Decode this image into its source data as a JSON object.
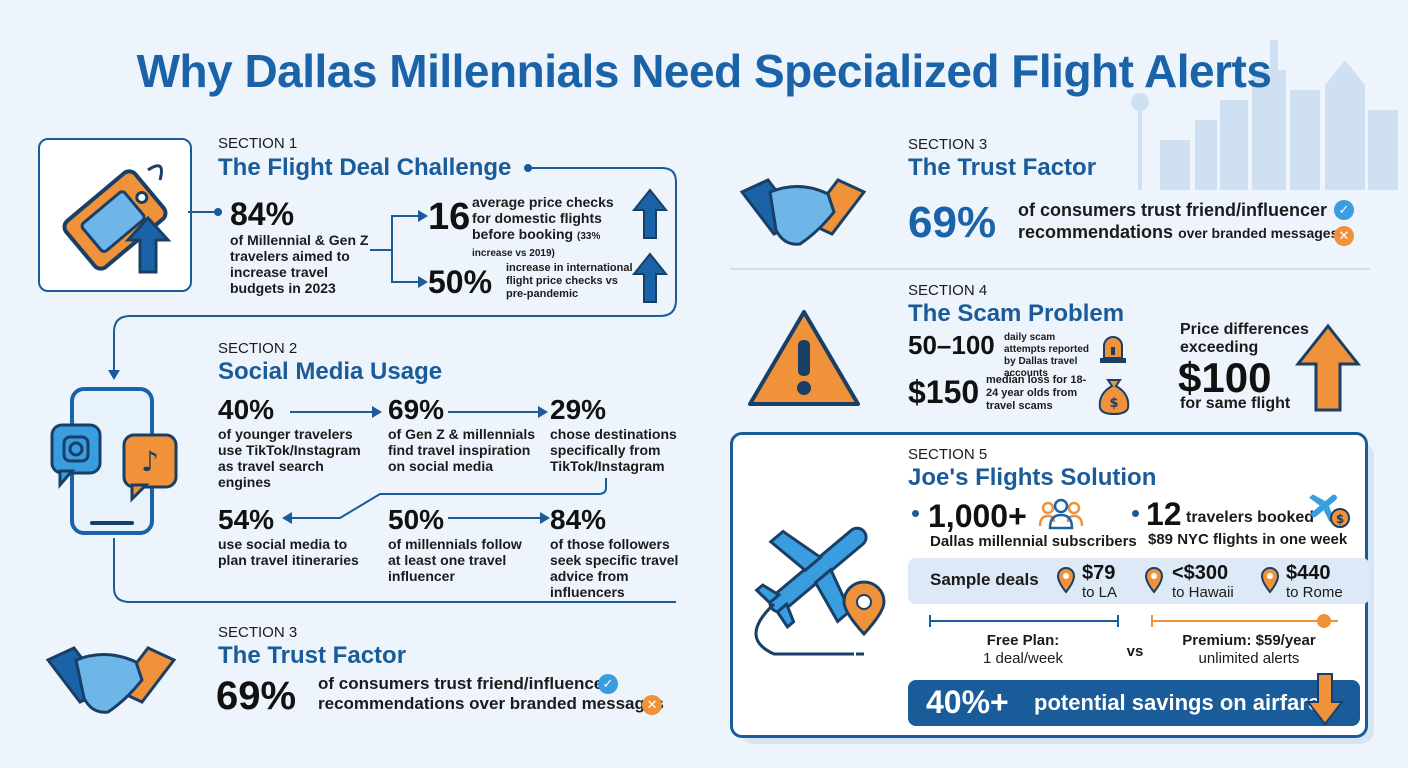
{
  "title": "Why Dallas Millennials Need Specialized Flight Alerts",
  "section1": {
    "label": "SECTION 1",
    "heading": "The Flight Deal Challenge",
    "stat_value": "84%",
    "stat_text": "of Millennial & Gen Z travelers aimed to increase travel budgets in 2023",
    "checks_value": "16",
    "checks_text": "average price checks for domestic flights before booking",
    "checks_note": "(33% increase vs 2019)",
    "intl_value": "50%",
    "intl_text": "increase in international flight price checks vs pre-pandemic"
  },
  "section2": {
    "label": "SECTION 2",
    "heading": "Social Media Usage",
    "stats": [
      {
        "value": "40%",
        "text": "of younger travelers use TikTok/Instagram as travel search engines"
      },
      {
        "value": "69%",
        "text": "of Gen Z & millennials find travel inspiration on social media"
      },
      {
        "value": "29%",
        "text": "chose destinations specifically from TikTok/Instagram"
      },
      {
        "value": "54%",
        "text": "use social media to plan travel itineraries"
      },
      {
        "value": "50%",
        "text": "of millennials follow at least one travel influencer"
      },
      {
        "value": "84%",
        "text": "of those followers seek specific travel advice from influencers"
      }
    ]
  },
  "section3": {
    "label": "SECTION 3",
    "heading": "The Trust Factor",
    "value": "69%",
    "line1": "of consumers trust friend/influencer",
    "line2_bold": "recommendations",
    "line2_rest": "over branded messages",
    "line2_full": "recommendations over branded messages"
  },
  "section4": {
    "label": "SECTION 4",
    "heading": "The Scam Problem",
    "attempts_value": "50–100",
    "attempts_text": "daily scam attempts reported by Dallas travel accounts",
    "loss_value": "$150",
    "loss_text": "median loss for 18-24 year olds from travel scams",
    "price_line1": "Price differences",
    "price_line2": "exceeding",
    "price_value": "$100",
    "price_line3": "for same flight"
  },
  "section5": {
    "label": "SECTION 5",
    "heading": "Joe's Flights Solution",
    "subscribers_value": "1,000+",
    "subscribers_text": "Dallas millennial subscribers",
    "booked_value": "12",
    "booked_text1": "travelers booked",
    "booked_text2": "$89 NYC flights in one week",
    "deals_label": "Sample deals",
    "deals": [
      {
        "price": "$79",
        "dest": "to LA"
      },
      {
        "price": "<$300",
        "dest": "to Hawaii"
      },
      {
        "price": "$440",
        "dest": "to Rome"
      }
    ],
    "free_title": "Free Plan:",
    "free_detail": "1 deal/week",
    "vs": "vs",
    "premium_title": "Premium: $59/year",
    "premium_detail": "unlimited alerts",
    "savings_value": "40%+",
    "savings_text": "potential savings on airfare"
  },
  "colors": {
    "navy": "#1a5b9a",
    "blue": "#1a63a8",
    "sky": "#3a9de0",
    "orange": "#f0923a"
  }
}
